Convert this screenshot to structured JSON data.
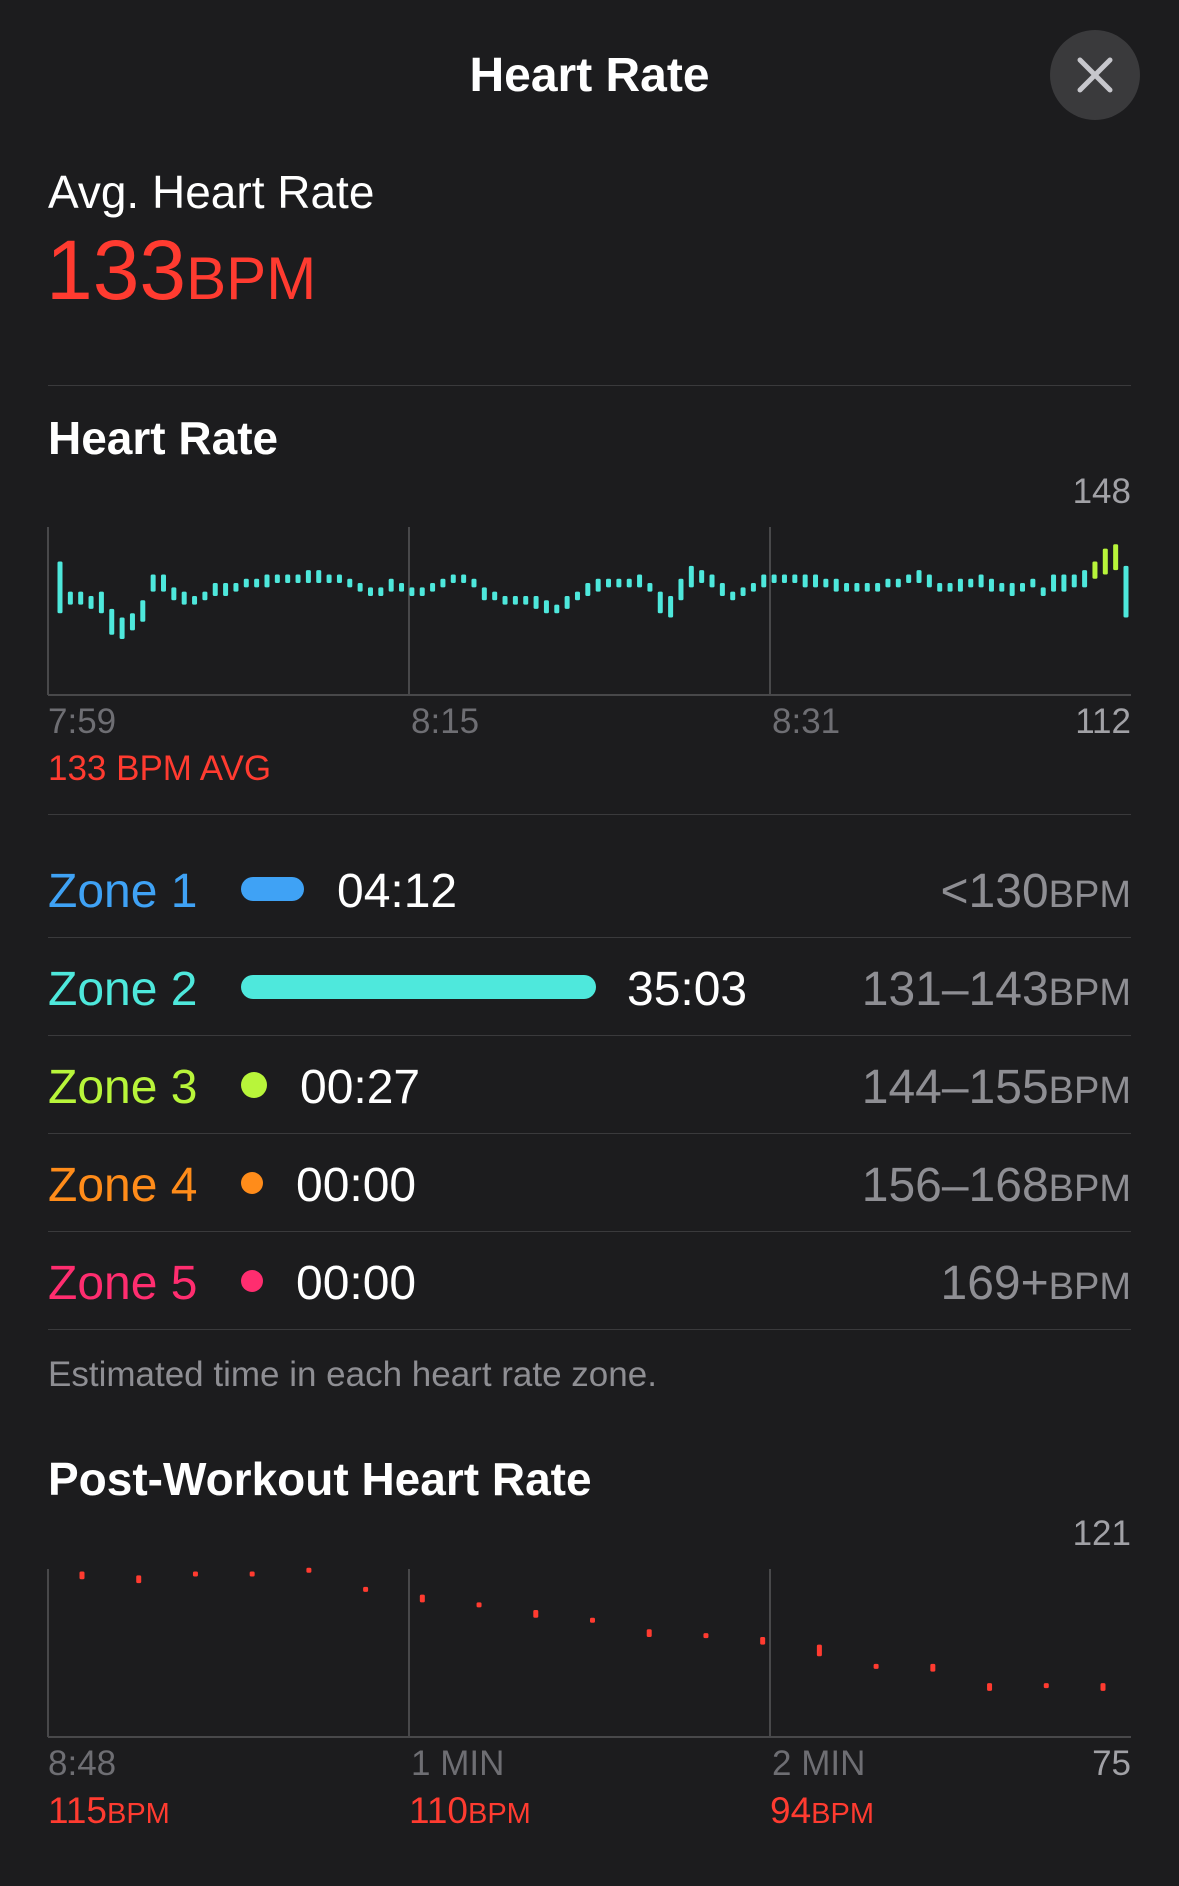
{
  "header": {
    "title": "Heart Rate",
    "close_icon": "close-icon"
  },
  "summary": {
    "label": "Avg. Heart Rate",
    "value": "133",
    "unit": "BPM",
    "color": "#ff3b30"
  },
  "hr_chart": {
    "section_title": "Heart Rate",
    "y_max_label": "148",
    "y_min_label": "112",
    "x_labels": [
      "7:59",
      "8:15",
      "8:31"
    ],
    "avg_label": "133 BPM AVG"
  },
  "zones": [
    {
      "name": "Zone 1",
      "time": "04:12",
      "range": "<130",
      "unit": "BPM",
      "color": "#3fa2f5",
      "indicator": "bar",
      "fraction": 0.12
    },
    {
      "name": "Zone 2",
      "time": "35:03",
      "range": "131–143",
      "unit": "BPM",
      "color": "#4ee8dc",
      "indicator": "bar",
      "fraction": 1.0
    },
    {
      "name": "Zone 3",
      "time": "00:27",
      "range": "144–155",
      "unit": "BPM",
      "color": "#b8f53a",
      "indicator": "dot",
      "fraction": 0.013
    },
    {
      "name": "Zone 4",
      "time": "00:00",
      "range": "156–168",
      "unit": "BPM",
      "color": "#ff8c1a",
      "indicator": "dot",
      "fraction": 0
    },
    {
      "name": "Zone 5",
      "time": "00:00",
      "range": "169+",
      "unit": "BPM",
      "color": "#ff2d6f",
      "indicator": "dot",
      "fraction": 0
    }
  ],
  "zones_footnote": "Estimated time in each heart rate zone.",
  "post_chart": {
    "section_title": "Post-Workout Heart Rate",
    "y_max_label": "121",
    "y_min_label": "75",
    "x_labels": [
      "8:48",
      "1 MIN",
      "2 MIN"
    ],
    "markers": [
      {
        "value": "115",
        "unit": "BPM"
      },
      {
        "value": "110",
        "unit": "BPM"
      },
      {
        "value": "94",
        "unit": "BPM"
      }
    ]
  },
  "chart_data": [
    {
      "type": "bar",
      "title": "Heart Rate",
      "ylim": [
        112,
        148
      ],
      "x_ticks": [
        "7:59",
        "8:15",
        "8:31"
      ],
      "color": "#4ee8dc",
      "highlight_color": "#b8f53a",
      "bars": [
        [
          131,
          143
        ],
        [
          133,
          136
        ],
        [
          133,
          136
        ],
        [
          132,
          135
        ],
        [
          131,
          136
        ],
        [
          126,
          132
        ],
        [
          125,
          130
        ],
        [
          127,
          131
        ],
        [
          129,
          134
        ],
        [
          136,
          140
        ],
        [
          136,
          140
        ],
        [
          134,
          137
        ],
        [
          133,
          136
        ],
        [
          133,
          135
        ],
        [
          134,
          136
        ],
        [
          135,
          138
        ],
        [
          135,
          138
        ],
        [
          136,
          138
        ],
        [
          137,
          139
        ],
        [
          137,
          139
        ],
        [
          137,
          140
        ],
        [
          138,
          140
        ],
        [
          138,
          140
        ],
        [
          138,
          140
        ],
        [
          138,
          141
        ],
        [
          138,
          141
        ],
        [
          138,
          140
        ],
        [
          138,
          140
        ],
        [
          137,
          139
        ],
        [
          136,
          138
        ],
        [
          135,
          137
        ],
        [
          135,
          137
        ],
        [
          136,
          139
        ],
        [
          136,
          138
        ],
        [
          135,
          137
        ],
        [
          135,
          137
        ],
        [
          136,
          138
        ],
        [
          137,
          139
        ],
        [
          138,
          140
        ],
        [
          138,
          140
        ],
        [
          137,
          139
        ],
        [
          134,
          137
        ],
        [
          134,
          136
        ],
        [
          133,
          135
        ],
        [
          133,
          135
        ],
        [
          133,
          135
        ],
        [
          132,
          135
        ],
        [
          131,
          134
        ],
        [
          131,
          133
        ],
        [
          132,
          135
        ],
        [
          134,
          136
        ],
        [
          135,
          138
        ],
        [
          136,
          139
        ],
        [
          137,
          139
        ],
        [
          137,
          139
        ],
        [
          137,
          139
        ],
        [
          137,
          140
        ],
        [
          136,
          138
        ],
        [
          131,
          136
        ],
        [
          130,
          135
        ],
        [
          134,
          139
        ],
        [
          137,
          142
        ],
        [
          138,
          141
        ],
        [
          137,
          140
        ],
        [
          135,
          138
        ],
        [
          134,
          136
        ],
        [
          135,
          137
        ],
        [
          136,
          138
        ],
        [
          137,
          140
        ],
        [
          138,
          140
        ],
        [
          138,
          140
        ],
        [
          138,
          140
        ],
        [
          137,
          140
        ],
        [
          137,
          140
        ],
        [
          137,
          139
        ],
        [
          136,
          139
        ],
        [
          136,
          138
        ],
        [
          136,
          138
        ],
        [
          136,
          138
        ],
        [
          136,
          138
        ],
        [
          137,
          139
        ],
        [
          137,
          139
        ],
        [
          138,
          140
        ],
        [
          138,
          141
        ],
        [
          137,
          140
        ],
        [
          136,
          138
        ],
        [
          136,
          138
        ],
        [
          136,
          139
        ],
        [
          137,
          139
        ],
        [
          137,
          140
        ],
        [
          136,
          139
        ],
        [
          136,
          138
        ],
        [
          135,
          138
        ],
        [
          136,
          138
        ],
        [
          137,
          139
        ],
        [
          135,
          137
        ],
        [
          136,
          140
        ],
        [
          136,
          140
        ],
        [
          137,
          140
        ],
        [
          137,
          141
        ],
        [
          139,
          143
        ],
        [
          140,
          146
        ],
        [
          141,
          147
        ],
        [
          130,
          142
        ]
      ]
    },
    {
      "type": "scatter",
      "title": "Post-Workout Heart Rate",
      "ylim": [
        75,
        121
      ],
      "x_ticks": [
        "8:48",
        "1 MIN",
        "2 MIN"
      ],
      "color": "#ff3b30",
      "points": [
        [
          116,
          118
        ],
        [
          115,
          117
        ],
        [
          117,
          118
        ],
        [
          117,
          118
        ],
        [
          118,
          119
        ],
        [
          113,
          114
        ],
        [
          110,
          112
        ],
        [
          109,
          110
        ],
        [
          106,
          108
        ],
        [
          105,
          106
        ],
        [
          101,
          103
        ],
        [
          101,
          102
        ],
        [
          99,
          101
        ],
        [
          96,
          99
        ],
        [
          93,
          94
        ],
        [
          92,
          94
        ],
        [
          87,
          89
        ],
        [
          88,
          89
        ],
        [
          87,
          89
        ]
      ],
      "markers": [
        {
          "at": "8:48",
          "label": "115BPM"
        },
        {
          "at": "1 MIN",
          "label": "110BPM"
        },
        {
          "at": "2 MIN",
          "label": "94BPM"
        }
      ]
    }
  ]
}
